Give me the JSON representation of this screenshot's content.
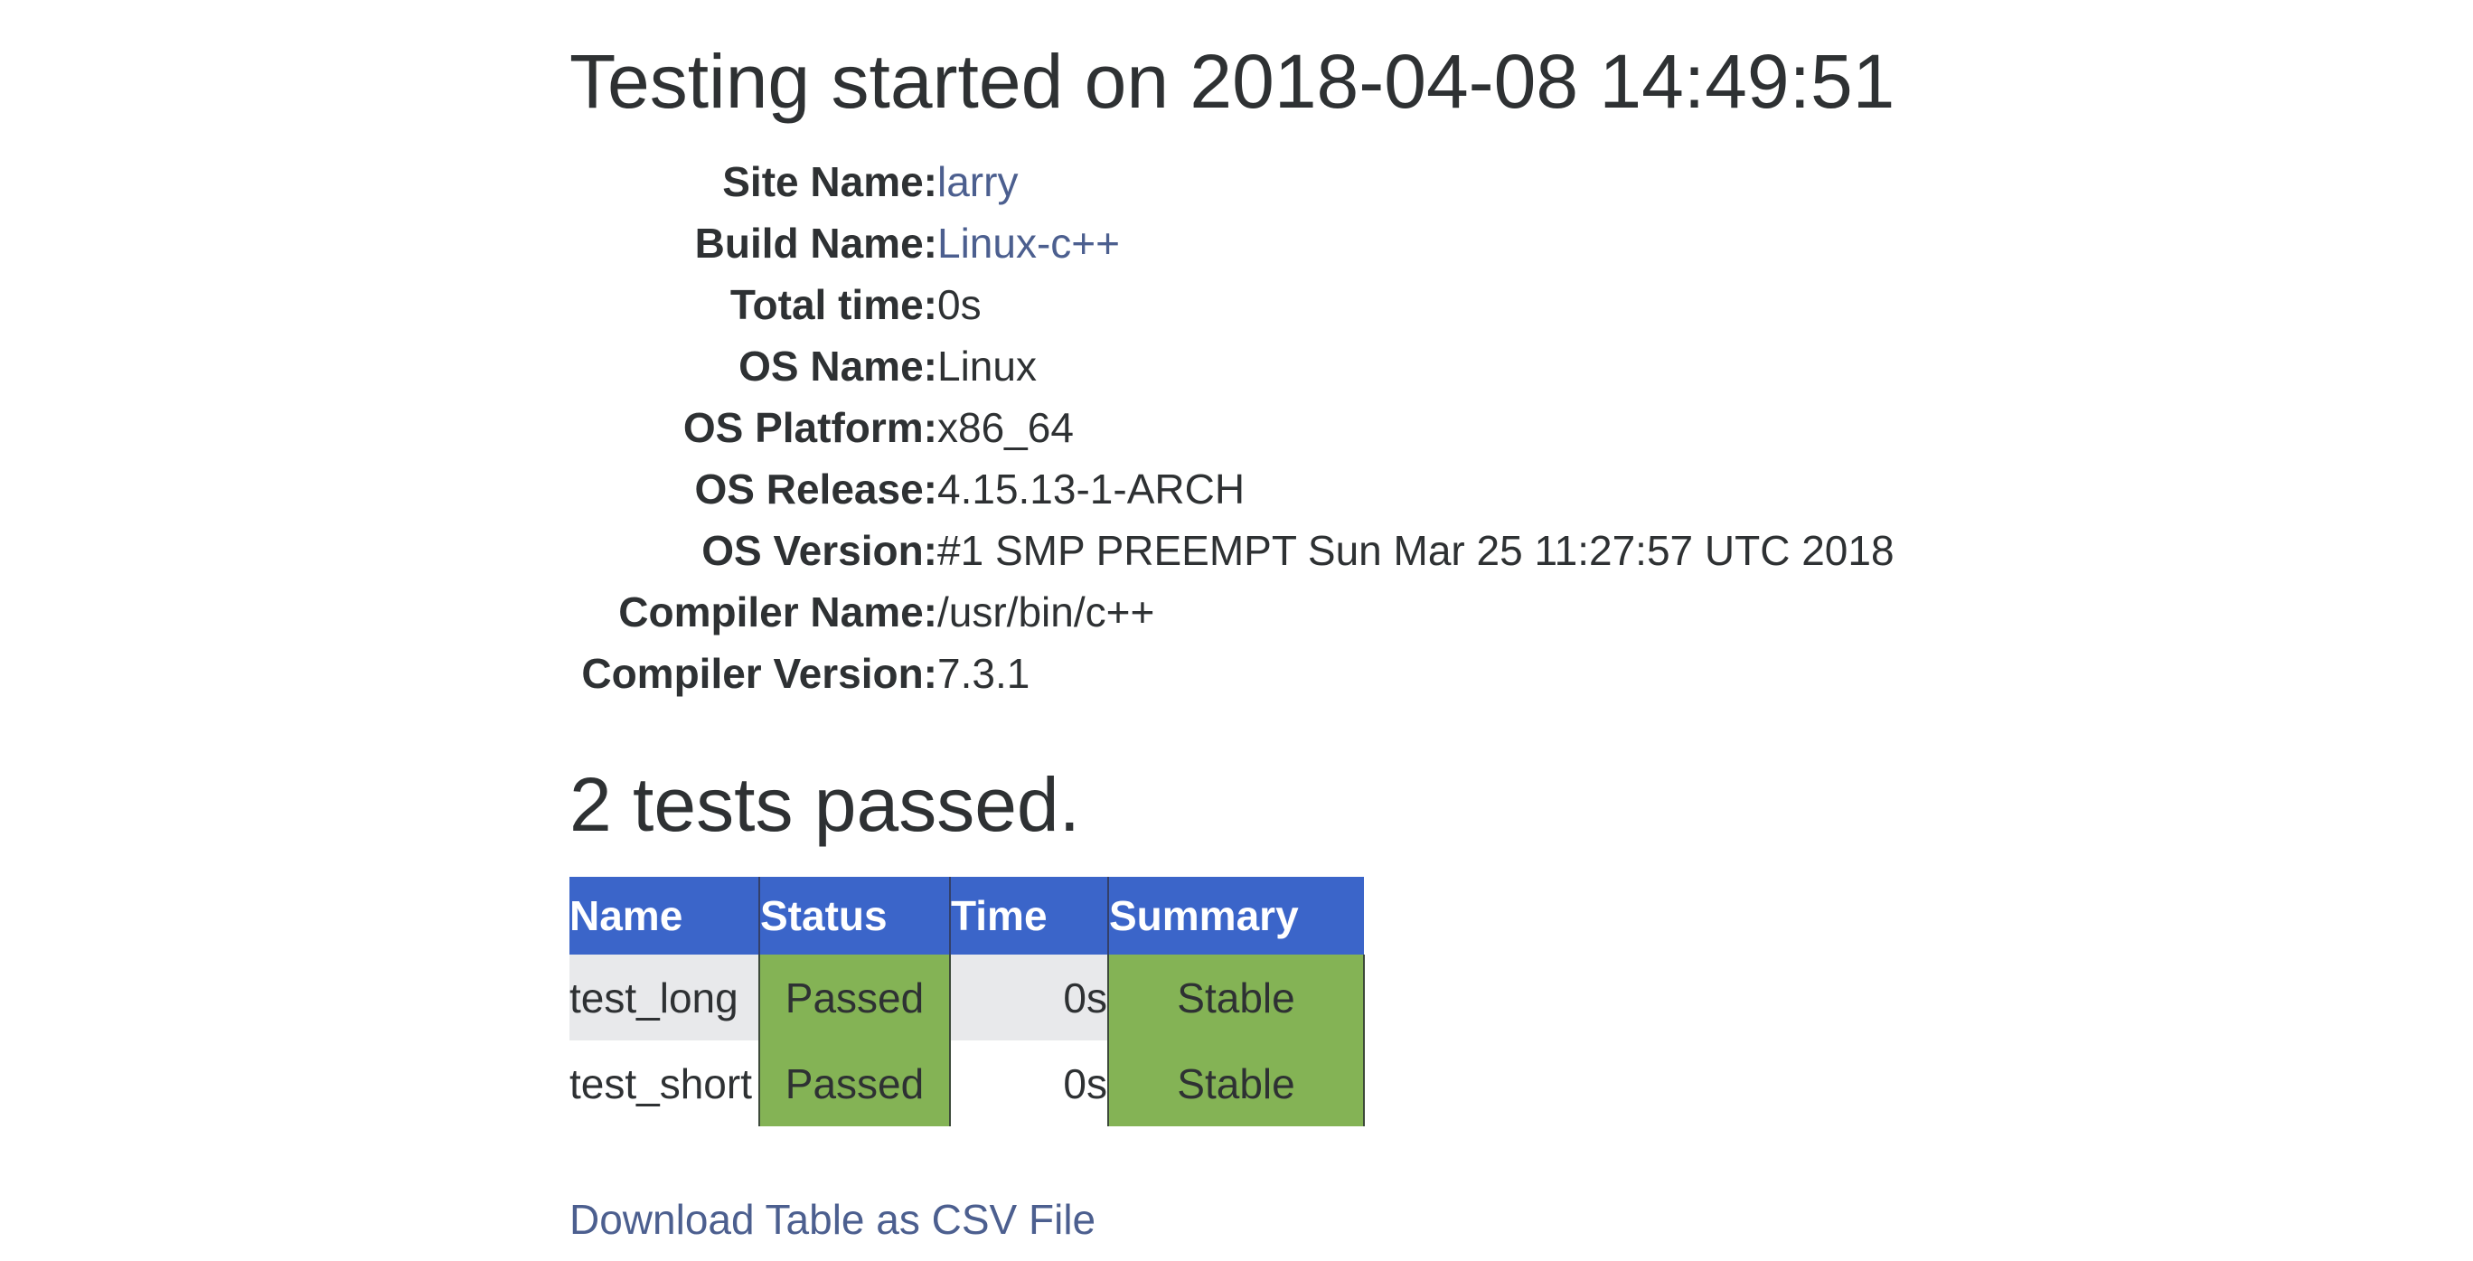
{
  "title": "Testing started on 2018-04-08 14:49:51",
  "info": [
    {
      "label": "Site Name:",
      "value": "larry",
      "link": true
    },
    {
      "label": "Build Name:",
      "value": "Linux-c++",
      "link": true
    },
    {
      "label": "Total time:",
      "value": "0s",
      "link": false
    },
    {
      "label": "OS Name:",
      "value": "Linux",
      "link": false
    },
    {
      "label": "OS Platform:",
      "value": "x86_64",
      "link": false
    },
    {
      "label": "OS Release:",
      "value": "4.15.13-1-ARCH",
      "link": false
    },
    {
      "label": "OS Version:",
      "value": "#1 SMP PREEMPT Sun Mar 25 11:27:57 UTC 2018",
      "link": false
    },
    {
      "label": "Compiler Name:",
      "value": "/usr/bin/c++",
      "link": false
    },
    {
      "label": "Compiler Version:",
      "value": "7.3.1",
      "link": false
    }
  ],
  "summary_heading": "2 tests passed.",
  "table": {
    "headers": [
      "Name",
      "Status",
      "Time",
      "Summary"
    ],
    "rows": [
      {
        "name": "test_long",
        "status": "Passed",
        "time": "0s",
        "summary": "Stable"
      },
      {
        "name": "test_short",
        "status": "Passed",
        "time": "0s",
        "summary": "Stable"
      }
    ]
  },
  "download_link": "Download Table as CSV File",
  "colors": {
    "header": "#3b65c9",
    "passed": "#84b355",
    "link": "#4c5f8f",
    "alt_row": "#e8e9eb"
  }
}
